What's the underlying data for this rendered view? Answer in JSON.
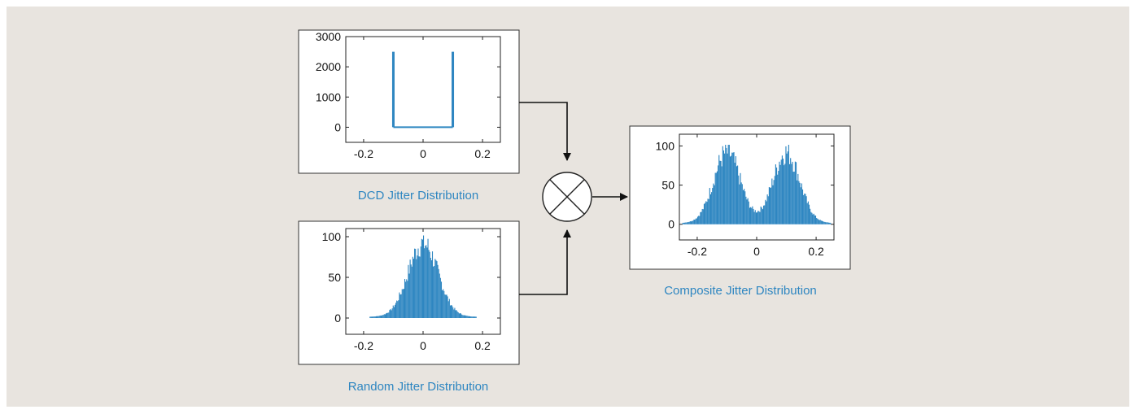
{
  "colors": {
    "background": "#e8e4df",
    "bar": "#2e86c1",
    "caption": "#2e86c1",
    "axis": "#222222"
  },
  "captions": {
    "dcd": "DCD Jitter Distribution",
    "random": "Random Jitter Distribution",
    "composite": "Composite Jitter Distribution"
  },
  "multiply_symbol": "multiply-icon",
  "chart_data": [
    {
      "id": "dcd",
      "type": "bar",
      "xlim": [
        -0.26,
        0.26
      ],
      "ylim": [
        -500,
        3000
      ],
      "xticks": [
        "-0.2",
        "0",
        "0.2"
      ],
      "xtick_values": [
        -0.2,
        0,
        0.2
      ],
      "yticks": [
        "3000",
        "2000",
        "1000",
        "0"
      ],
      "ytick_values": [
        3000,
        2000,
        1000,
        0
      ],
      "x": [
        -0.1,
        0.1
      ],
      "values": [
        2500,
        2500
      ]
    },
    {
      "id": "random",
      "type": "bar",
      "xlim": [
        -0.26,
        0.26
      ],
      "ylim": [
        -20,
        110
      ],
      "xticks": [
        "-0.2",
        "0",
        "0.2"
      ],
      "xtick_values": [
        -0.2,
        0,
        0.2
      ],
      "yticks": [
        "100",
        "50",
        "0"
      ],
      "ytick_values": [
        100,
        50,
        0
      ],
      "distribution": {
        "centers": [
          0
        ],
        "sigma": 0.05,
        "peak": 95,
        "range": [
          -0.18,
          0.18
        ],
        "bins": 120
      }
    },
    {
      "id": "composite",
      "type": "bar",
      "xlim": [
        -0.26,
        0.26
      ],
      "ylim": [
        -20,
        115
      ],
      "xticks": [
        "-0.2",
        "0",
        "0.2"
      ],
      "xtick_values": [
        -0.2,
        0,
        0.2
      ],
      "yticks": [
        "100",
        "50",
        "0"
      ],
      "ytick_values": [
        100,
        50,
        0
      ],
      "distribution": {
        "centers": [
          -0.1,
          0.1
        ],
        "sigma": 0.045,
        "peak": 95,
        "range": [
          -0.25,
          0.25
        ],
        "bins": 160
      }
    }
  ]
}
